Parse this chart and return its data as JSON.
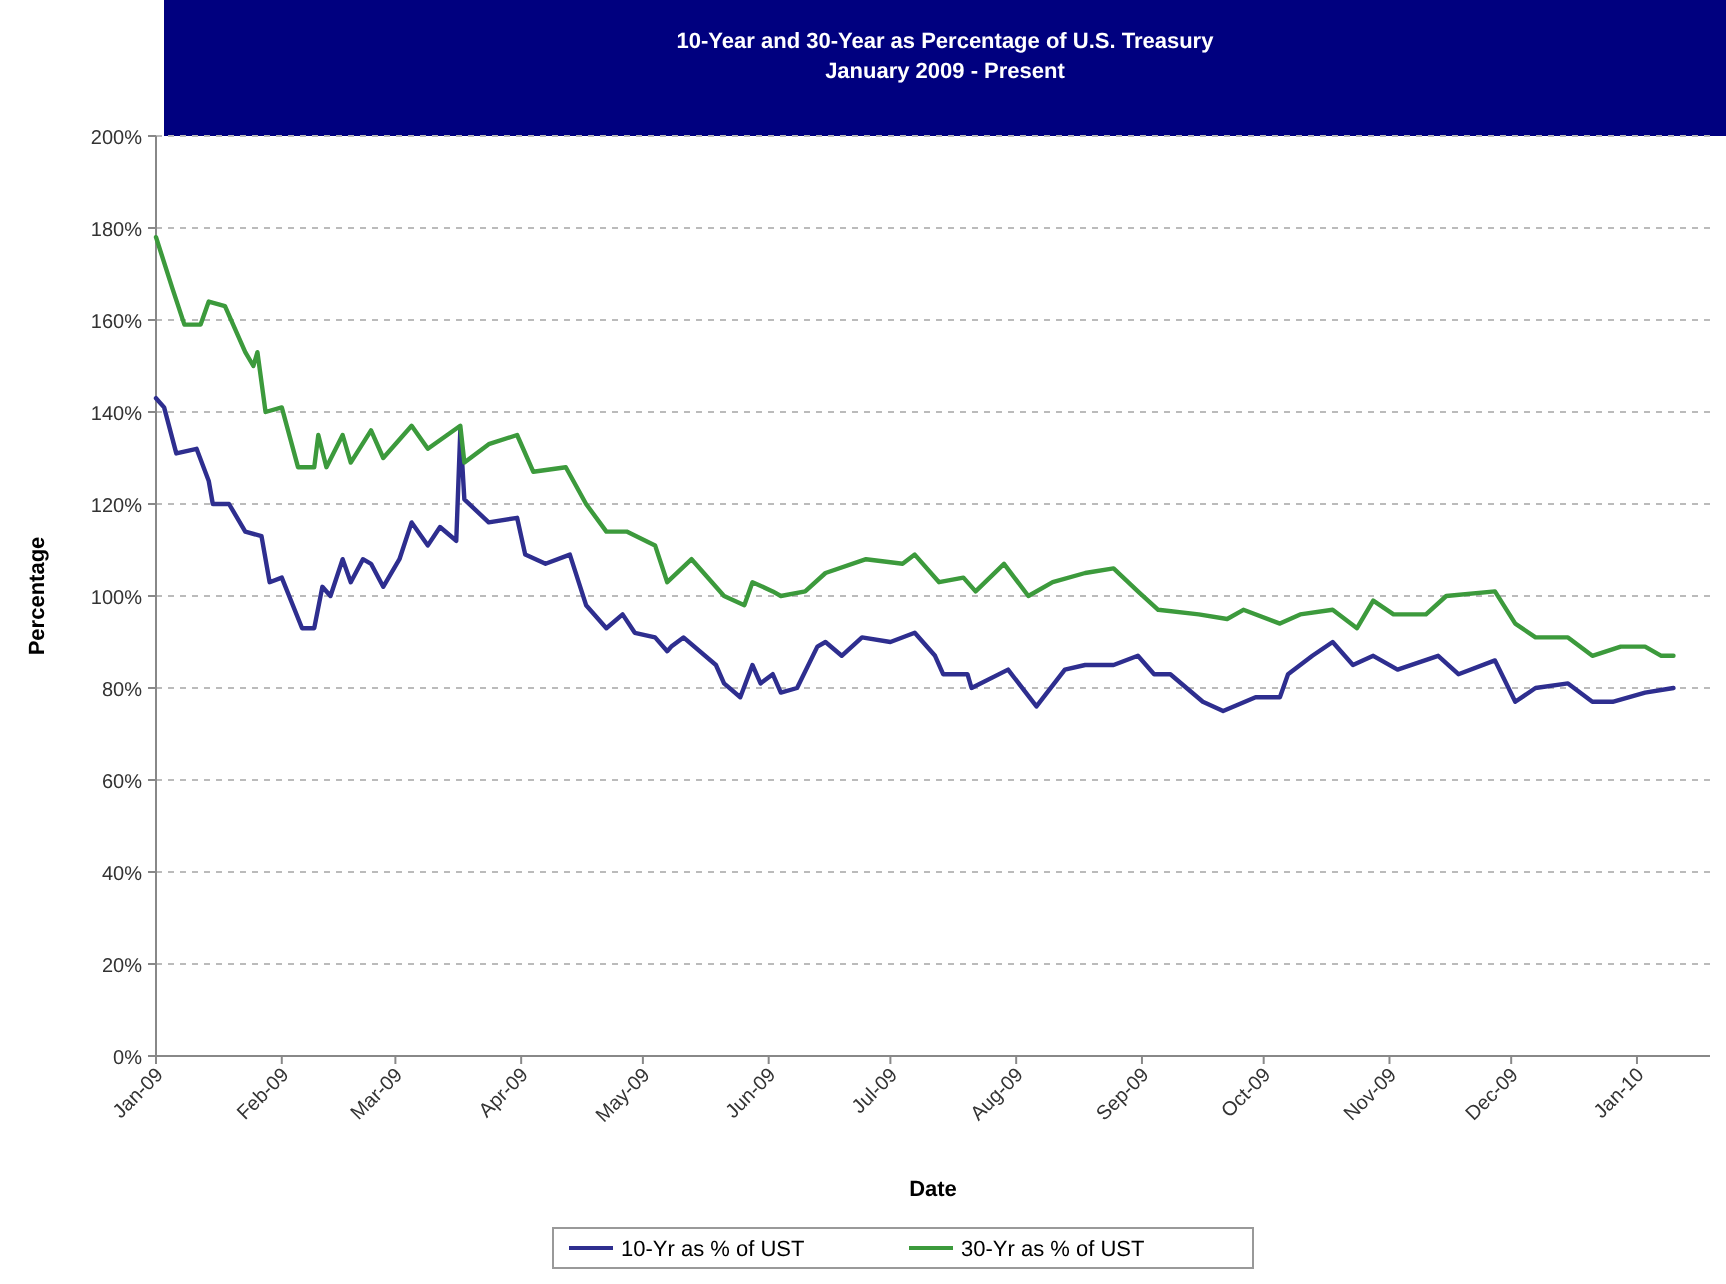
{
  "chart_data": {
    "type": "line",
    "title": "10-Year and 30-Year as Percentage of U.S. Treasury",
    "subtitle": "January 2009 - Present",
    "xlabel": "Date",
    "ylabel": "Percentage",
    "xlim": [
      "2009-01-01",
      "2010-01-19"
    ],
    "xticks": [
      {
        "value": "2009-01-01",
        "label": "Jan-09"
      },
      {
        "value": "2009-02-01",
        "label": "Feb-09"
      },
      {
        "value": "2009-03-01",
        "label": "Mar-09"
      },
      {
        "value": "2009-04-01",
        "label": "Apr-09"
      },
      {
        "value": "2009-05-01",
        "label": "May-09"
      },
      {
        "value": "2009-06-01",
        "label": "Jun-09"
      },
      {
        "value": "2009-07-01",
        "label": "Jul-09"
      },
      {
        "value": "2009-08-01",
        "label": "Aug-09"
      },
      {
        "value": "2009-09-01",
        "label": "Sep-09"
      },
      {
        "value": "2009-10-01",
        "label": "Oct-09"
      },
      {
        "value": "2009-11-01",
        "label": "Nov-09"
      },
      {
        "value": "2009-12-01",
        "label": "Dec-09"
      },
      {
        "value": "2010-01-01",
        "label": "Jan-10"
      }
    ],
    "ylim": [
      0,
      200
    ],
    "yticks": [
      {
        "value": 0,
        "label": "0%"
      },
      {
        "value": 20,
        "label": "20%"
      },
      {
        "value": 40,
        "label": "40%"
      },
      {
        "value": 60,
        "label": "60%"
      },
      {
        "value": 80,
        "label": "80%"
      },
      {
        "value": 100,
        "label": "100%"
      },
      {
        "value": 120,
        "label": "120%"
      },
      {
        "value": 140,
        "label": "140%"
      },
      {
        "value": 160,
        "label": "160%"
      },
      {
        "value": 180,
        "label": "180%"
      },
      {
        "value": 200,
        "label": "200%"
      }
    ],
    "grid": "y",
    "legend": "bottom",
    "marker": "none",
    "line_style": "solid",
    "series": [
      {
        "name": "10-Yr as % of UST",
        "color": "#2e2e8f",
        "x": [
          "2009-01-01",
          "2009-01-03",
          "2009-01-06",
          "2009-01-11",
          "2009-01-14",
          "2009-01-15",
          "2009-01-19",
          "2009-01-23",
          "2009-01-27",
          "2009-01-29",
          "2009-02-01",
          "2009-02-06",
          "2009-02-09",
          "2009-02-11",
          "2009-02-13",
          "2009-02-16",
          "2009-02-18",
          "2009-02-21",
          "2009-02-23",
          "2009-02-26",
          "2009-03-02",
          "2009-03-05",
          "2009-03-09",
          "2009-03-12",
          "2009-03-16",
          "2009-03-17",
          "2009-03-18",
          "2009-03-24",
          "2009-03-31",
          "2009-04-02",
          "2009-04-07",
          "2009-04-13",
          "2009-04-17",
          "2009-04-22",
          "2009-04-26",
          "2009-04-29",
          "2009-05-04",
          "2009-05-07",
          "2009-05-08",
          "2009-05-11",
          "2009-05-19",
          "2009-05-21",
          "2009-05-25",
          "2009-05-28",
          "2009-05-30",
          "2009-06-02",
          "2009-06-04",
          "2009-06-08",
          "2009-06-13",
          "2009-06-15",
          "2009-06-19",
          "2009-06-24",
          "2009-07-01",
          "2009-07-07",
          "2009-07-12",
          "2009-07-14",
          "2009-07-20",
          "2009-07-21",
          "2009-07-30",
          "2009-08-06",
          "2009-08-13",
          "2009-08-18",
          "2009-08-25",
          "2009-08-31",
          "2009-09-04",
          "2009-09-08",
          "2009-09-16",
          "2009-09-21",
          "2009-09-29",
          "2009-10-05",
          "2009-10-07",
          "2009-10-13",
          "2009-10-18",
          "2009-10-23",
          "2009-10-28",
          "2009-11-03",
          "2009-11-13",
          "2009-11-18",
          "2009-11-27",
          "2009-12-02",
          "2009-12-07",
          "2009-12-15",
          "2009-12-21",
          "2009-12-26",
          "2010-01-03",
          "2010-01-10"
        ],
        "values": [
          143,
          141,
          131,
          132,
          125,
          120,
          120,
          114,
          113,
          103,
          104,
          93,
          93,
          102,
          100,
          108,
          103,
          108,
          107,
          102,
          108,
          116,
          111,
          115,
          112,
          136,
          121,
          116,
          117,
          109,
          107,
          109,
          98,
          93,
          96,
          92,
          91,
          88,
          89,
          91,
          85,
          81,
          78,
          85,
          81,
          83,
          79,
          80,
          89,
          90,
          87,
          91,
          90,
          92,
          87,
          83,
          83,
          80,
          84,
          76,
          84,
          85,
          85,
          87,
          83,
          83,
          77,
          75,
          78,
          78,
          83,
          87,
          90,
          85,
          87,
          84,
          87,
          83,
          86,
          77,
          80,
          81,
          77,
          77,
          79,
          80
        ]
      },
      {
        "name": "30-Yr as % of UST",
        "color": "#3c9a3c",
        "x": [
          "2009-01-01",
          "2009-01-05",
          "2009-01-08",
          "2009-01-12",
          "2009-01-14",
          "2009-01-18",
          "2009-01-23",
          "2009-01-25",
          "2009-01-26",
          "2009-01-28",
          "2009-02-01",
          "2009-02-05",
          "2009-02-09",
          "2009-02-10",
          "2009-02-12",
          "2009-02-16",
          "2009-02-18",
          "2009-02-23",
          "2009-02-26",
          "2009-03-05",
          "2009-03-09",
          "2009-03-17",
          "2009-03-18",
          "2009-03-24",
          "2009-03-31",
          "2009-04-04",
          "2009-04-12",
          "2009-04-17",
          "2009-04-22",
          "2009-04-27",
          "2009-05-04",
          "2009-05-07",
          "2009-05-13",
          "2009-05-21",
          "2009-05-26",
          "2009-05-28",
          "2009-06-02",
          "2009-06-04",
          "2009-06-10",
          "2009-06-15",
          "2009-06-25",
          "2009-07-04",
          "2009-07-07",
          "2009-07-13",
          "2009-07-19",
          "2009-07-22",
          "2009-07-29",
          "2009-08-04",
          "2009-08-10",
          "2009-08-18",
          "2009-08-25",
          "2009-08-31",
          "2009-09-05",
          "2009-09-15",
          "2009-09-22",
          "2009-09-26",
          "2009-10-05",
          "2009-10-10",
          "2009-10-18",
          "2009-10-24",
          "2009-10-28",
          "2009-11-02",
          "2009-11-10",
          "2009-11-15",
          "2009-11-27",
          "2009-12-02",
          "2009-12-07",
          "2009-12-15",
          "2009-12-21",
          "2009-12-28",
          "2010-01-03",
          "2010-01-07",
          "2010-01-10"
        ],
        "values": [
          178,
          167,
          159,
          159,
          164,
          163,
          153,
          150,
          153,
          140,
          141,
          128,
          128,
          135,
          128,
          135,
          129,
          136,
          130,
          137,
          132,
          137,
          129,
          133,
          135,
          127,
          128,
          120,
          114,
          114,
          111,
          103,
          108,
          100,
          98,
          103,
          101,
          100,
          101,
          105,
          108,
          107,
          109,
          103,
          104,
          101,
          107,
          100,
          103,
          105,
          106,
          101,
          97,
          96,
          95,
          97,
          94,
          96,
          97,
          93,
          99,
          96,
          96,
          100,
          101,
          94,
          91,
          91,
          87,
          89,
          89,
          87,
          87
        ]
      }
    ]
  }
}
